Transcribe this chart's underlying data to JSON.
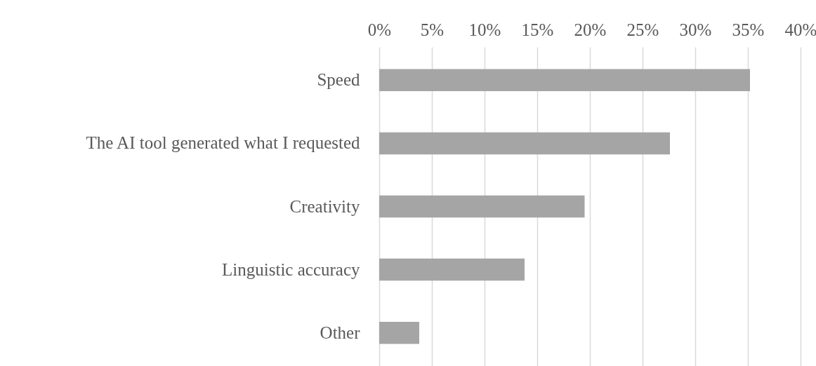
{
  "chart_data": {
    "type": "bar",
    "orientation": "horizontal",
    "categories": [
      "Speed",
      "The AI tool generated what I requested",
      "Creativity",
      "Linguistic accuracy",
      "Other"
    ],
    "values": [
      35.2,
      27.6,
      19.5,
      13.8,
      3.8
    ],
    "color": "#a5a5a5",
    "xlim": [
      0,
      40
    ],
    "xticks": [
      {
        "value": 0,
        "label": "0%"
      },
      {
        "value": 5,
        "label": "5%"
      },
      {
        "value": 10,
        "label": "10%"
      },
      {
        "value": 15,
        "label": "15%"
      },
      {
        "value": 20,
        "label": "20%"
      },
      {
        "value": 25,
        "label": "25%"
      },
      {
        "value": 30,
        "label": "30%"
      },
      {
        "value": 35,
        "label": "35%"
      },
      {
        "value": 40,
        "label": "40%"
      }
    ],
    "grid": "x"
  }
}
